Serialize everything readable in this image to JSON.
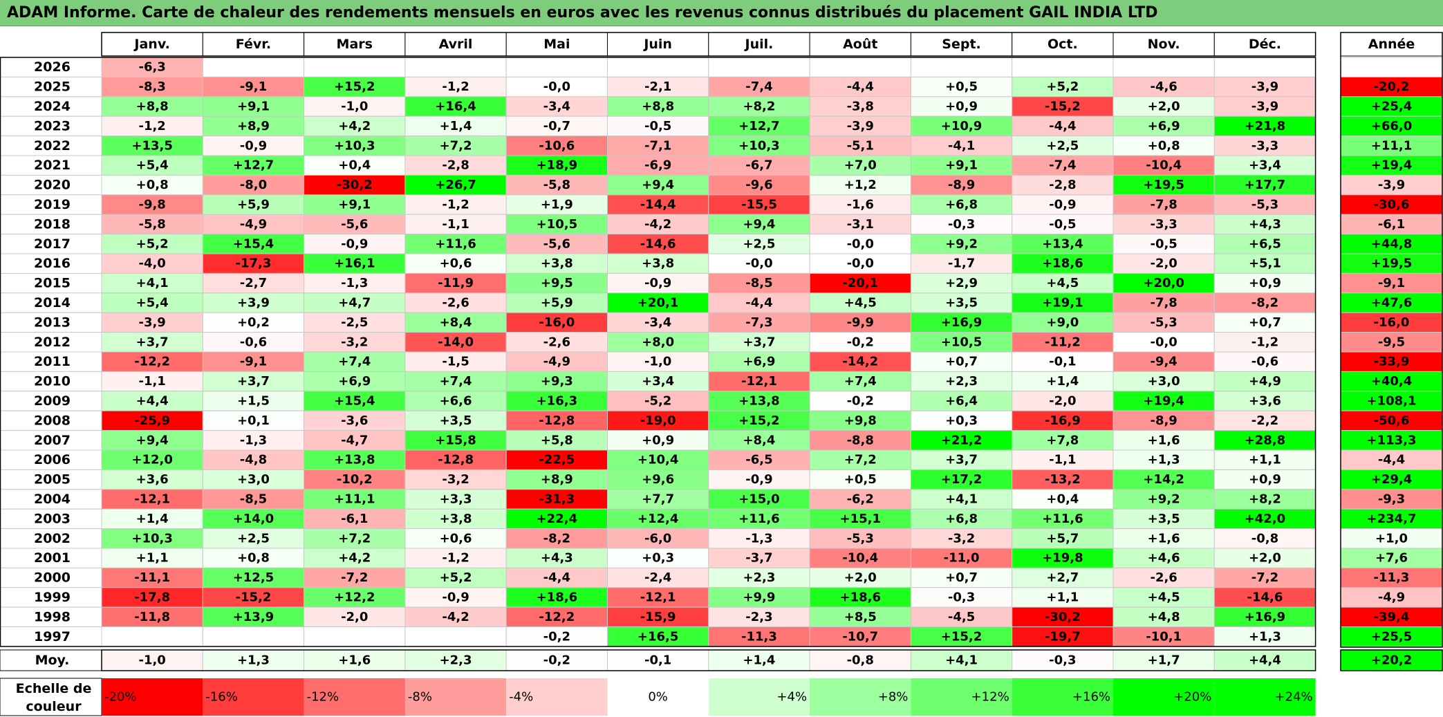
{
  "title": "ADAM Informe. Carte de chaleur des rendements mensuels en euros avec les revenus connus distribués du placement GAIL INDIA LTD",
  "chart_data": {
    "type": "heatmap",
    "months": [
      "Janv.",
      "Févr.",
      "Mars",
      "Avril",
      "Mai",
      "Juin",
      "Juil.",
      "Août",
      "Sept.",
      "Oct.",
      "Nov.",
      "Déc."
    ],
    "year_label": "Année",
    "years": [
      "2026",
      "2025",
      "2024",
      "2023",
      "2022",
      "2021",
      "2020",
      "2019",
      "2018",
      "2017",
      "2016",
      "2015",
      "2014",
      "2013",
      "2012",
      "2011",
      "2010",
      "2009",
      "2008",
      "2007",
      "2006",
      "2005",
      "2004",
      "2003",
      "2002",
      "2001",
      "2000",
      "1999",
      "1998",
      "1997"
    ],
    "values": [
      [
        "-6,3",
        "",
        "",
        "",
        "",
        "",
        "",
        "",
        "",
        "",
        "",
        ""
      ],
      [
        "-8,3",
        "-9,1",
        "+15,2",
        "-1,2",
        "-0,0",
        "-2,1",
        "-7,4",
        "-4,4",
        "+0,5",
        "+5,2",
        "-4,6",
        "-3,9"
      ],
      [
        "+8,8",
        "+9,1",
        "-1,0",
        "+16,4",
        "-3,4",
        "+8,8",
        "+8,2",
        "-3,8",
        "+0,9",
        "-15,2",
        "+2,0",
        "-3,9"
      ],
      [
        "-1,2",
        "+8,9",
        "+4,2",
        "+1,4",
        "-0,7",
        "-0,5",
        "+12,7",
        "-3,9",
        "+10,9",
        "-4,4",
        "+6,9",
        "+21,8"
      ],
      [
        "+13,5",
        "-0,9",
        "+10,3",
        "+7,2",
        "-10,6",
        "-7,1",
        "+10,3",
        "-5,1",
        "-4,1",
        "+2,5",
        "+0,8",
        "-3,3"
      ],
      [
        "+5,4",
        "+12,7",
        "+0,4",
        "-2,8",
        "+18,9",
        "-6,9",
        "-6,7",
        "+7,0",
        "+9,1",
        "-7,4",
        "-10,4",
        "+3,4"
      ],
      [
        "+0,8",
        "-8,0",
        "-30,2",
        "+26,7",
        "-5,8",
        "+9,4",
        "-9,6",
        "+1,2",
        "-8,9",
        "-2,8",
        "+19,5",
        "+17,7"
      ],
      [
        "-9,8",
        "+5,9",
        "+9,1",
        "-1,2",
        "+1,9",
        "-14,4",
        "-15,5",
        "-1,6",
        "+6,8",
        "-0,9",
        "-7,8",
        "-5,3"
      ],
      [
        "-5,8",
        "-4,9",
        "-5,6",
        "-1,1",
        "+10,5",
        "-4,2",
        "+9,4",
        "-3,1",
        "-0,3",
        "-0,5",
        "-3,3",
        "+4,3"
      ],
      [
        "+5,2",
        "+15,4",
        "-0,9",
        "+11,6",
        "-5,6",
        "-14,6",
        "+2,5",
        "-0,0",
        "+9,2",
        "+13,4",
        "-0,5",
        "+6,5"
      ],
      [
        "-4,0",
        "-17,3",
        "+16,1",
        "+0,6",
        "+3,8",
        "+3,8",
        "-0,0",
        "-0,0",
        "-1,7",
        "+18,6",
        "-2,0",
        "+5,1"
      ],
      [
        "+4,1",
        "-2,7",
        "-1,3",
        "-11,9",
        "+9,5",
        "-0,9",
        "-8,5",
        "-20,1",
        "+2,9",
        "+4,5",
        "+20,0",
        "+0,9"
      ],
      [
        "+5,4",
        "+3,9",
        "+4,7",
        "-2,6",
        "+5,9",
        "+20,1",
        "-4,4",
        "+4,5",
        "+3,5",
        "+19,1",
        "-7,8",
        "-8,2"
      ],
      [
        "-3,9",
        "+0,2",
        "-2,5",
        "+8,4",
        "-16,0",
        "-3,4",
        "-7,3",
        "-9,9",
        "+16,9",
        "+9,0",
        "-5,3",
        "+0,7"
      ],
      [
        "+3,7",
        "-0,6",
        "-3,2",
        "-14,0",
        "-2,6",
        "+8,0",
        "+3,7",
        "-0,2",
        "+10,5",
        "-11,2",
        "-0,0",
        "-1,2"
      ],
      [
        "-12,2",
        "-9,1",
        "+7,4",
        "-1,5",
        "-4,9",
        "-1,0",
        "+6,9",
        "-14,2",
        "+0,7",
        "-0,1",
        "-9,4",
        "-0,6"
      ],
      [
        "-1,1",
        "+3,7",
        "+6,9",
        "+7,4",
        "+9,3",
        "+3,4",
        "-12,1",
        "+7,4",
        "+2,3",
        "+1,4",
        "+3,0",
        "+4,9"
      ],
      [
        "+4,4",
        "+1,5",
        "+15,4",
        "+6,6",
        "+16,3",
        "-5,2",
        "+13,8",
        "-0,2",
        "+6,4",
        "-2,0",
        "+19,4",
        "+3,6"
      ],
      [
        "-25,9",
        "+0,1",
        "-3,6",
        "+3,5",
        "-12,8",
        "-19,0",
        "+15,2",
        "+9,8",
        "+0,3",
        "-16,9",
        "-8,9",
        "-2,2"
      ],
      [
        "+9,4",
        "-1,3",
        "-4,7",
        "+15,8",
        "+5,8",
        "+0,9",
        "+8,4",
        "-8,8",
        "+21,2",
        "+7,8",
        "+1,6",
        "+28,8"
      ],
      [
        "+12,0",
        "-4,8",
        "+13,8",
        "-12,8",
        "-22,5",
        "+10,4",
        "-6,5",
        "+7,2",
        "+3,7",
        "-1,1",
        "+1,3",
        "+1,1"
      ],
      [
        "+3,6",
        "+3,0",
        "-10,2",
        "-3,2",
        "+8,9",
        "+9,6",
        "-0,9",
        "+0,5",
        "+17,2",
        "-13,2",
        "+14,2",
        "+0,9"
      ],
      [
        "-12,1",
        "-8,5",
        "+11,1",
        "+3,3",
        "-31,3",
        "+7,7",
        "+15,0",
        "-6,2",
        "+4,1",
        "+0,4",
        "+9,2",
        "+8,2"
      ],
      [
        "+1,4",
        "+14,0",
        "-6,1",
        "+3,8",
        "+22,4",
        "+12,4",
        "+11,6",
        "+15,1",
        "+6,8",
        "+11,6",
        "+3,5",
        "+42,0"
      ],
      [
        "+10,3",
        "+2,5",
        "+7,2",
        "+0,6",
        "-8,2",
        "-6,0",
        "-1,3",
        "-5,3",
        "-3,2",
        "+5,7",
        "+1,6",
        "-0,8"
      ],
      [
        "+1,1",
        "+0,8",
        "+4,2",
        "-1,2",
        "+4,3",
        "+0,3",
        "-3,7",
        "-10,4",
        "-11,0",
        "+19,8",
        "+4,6",
        "+2,0"
      ],
      [
        "-11,1",
        "+12,5",
        "-7,2",
        "+5,2",
        "-4,4",
        "-2,4",
        "+2,3",
        "+2,0",
        "+0,7",
        "+2,7",
        "-2,6",
        "-7,2"
      ],
      [
        "-17,8",
        "-15,2",
        "+12,2",
        "-0,9",
        "+18,6",
        "-12,1",
        "+9,9",
        "+18,6",
        "-0,3",
        "+1,1",
        "+4,5",
        "-14,6"
      ],
      [
        "-11,8",
        "+13,9",
        "-2,0",
        "-4,2",
        "-12,2",
        "-15,9",
        "-2,3",
        "+8,5",
        "-4,5",
        "-30,2",
        "+4,8",
        "+16,9"
      ],
      [
        "",
        "",
        "",
        "",
        "-0,2",
        "+16,5",
        "-11,3",
        "-10,7",
        "+15,2",
        "-19,7",
        "-10,1",
        "+1,3"
      ]
    ],
    "annual": [
      "",
      "-20,2",
      "+25,4",
      "+66,0",
      "+11,1",
      "+19,4",
      "-3,9",
      "-30,6",
      "-6,1",
      "+44,8",
      "+19,5",
      "-9,1",
      "+47,6",
      "-16,0",
      "-9,5",
      "-33,9",
      "+40,4",
      "+108,1",
      "-50,6",
      "+113,3",
      "-4,4",
      "+29,4",
      "-9,3",
      "+234,7",
      "+1,0",
      "+7,6",
      "-11,3",
      "-4,9",
      "-39,4",
      "+25,5"
    ],
    "average_label": "Moy.",
    "averages": [
      "-1,0",
      "+1,3",
      "+1,6",
      "+2,3",
      "-0,2",
      "-0,1",
      "+1,4",
      "-0,8",
      "+4,1",
      "-0,3",
      "+1,7",
      "+4,4"
    ],
    "average_annual": "+20,2",
    "scale_label_line1": "Echelle de",
    "scale_label_line2": "couleur",
    "scale_labels": [
      "-20%",
      "-16%",
      "-12%",
      "-8%",
      "-4%",
      "0%",
      "+4%",
      "+8%",
      "+12%",
      "+16%",
      "+20%",
      "+24%"
    ],
    "scale_values": [
      -20,
      -16,
      -12,
      -8,
      -4,
      0,
      4,
      8,
      12,
      16,
      20,
      24
    ],
    "colors": {
      "negative": "#ff0000",
      "positive": "#00ff00",
      "neutral": "#ffffff",
      "title_bar": "#7dcd7d"
    }
  }
}
